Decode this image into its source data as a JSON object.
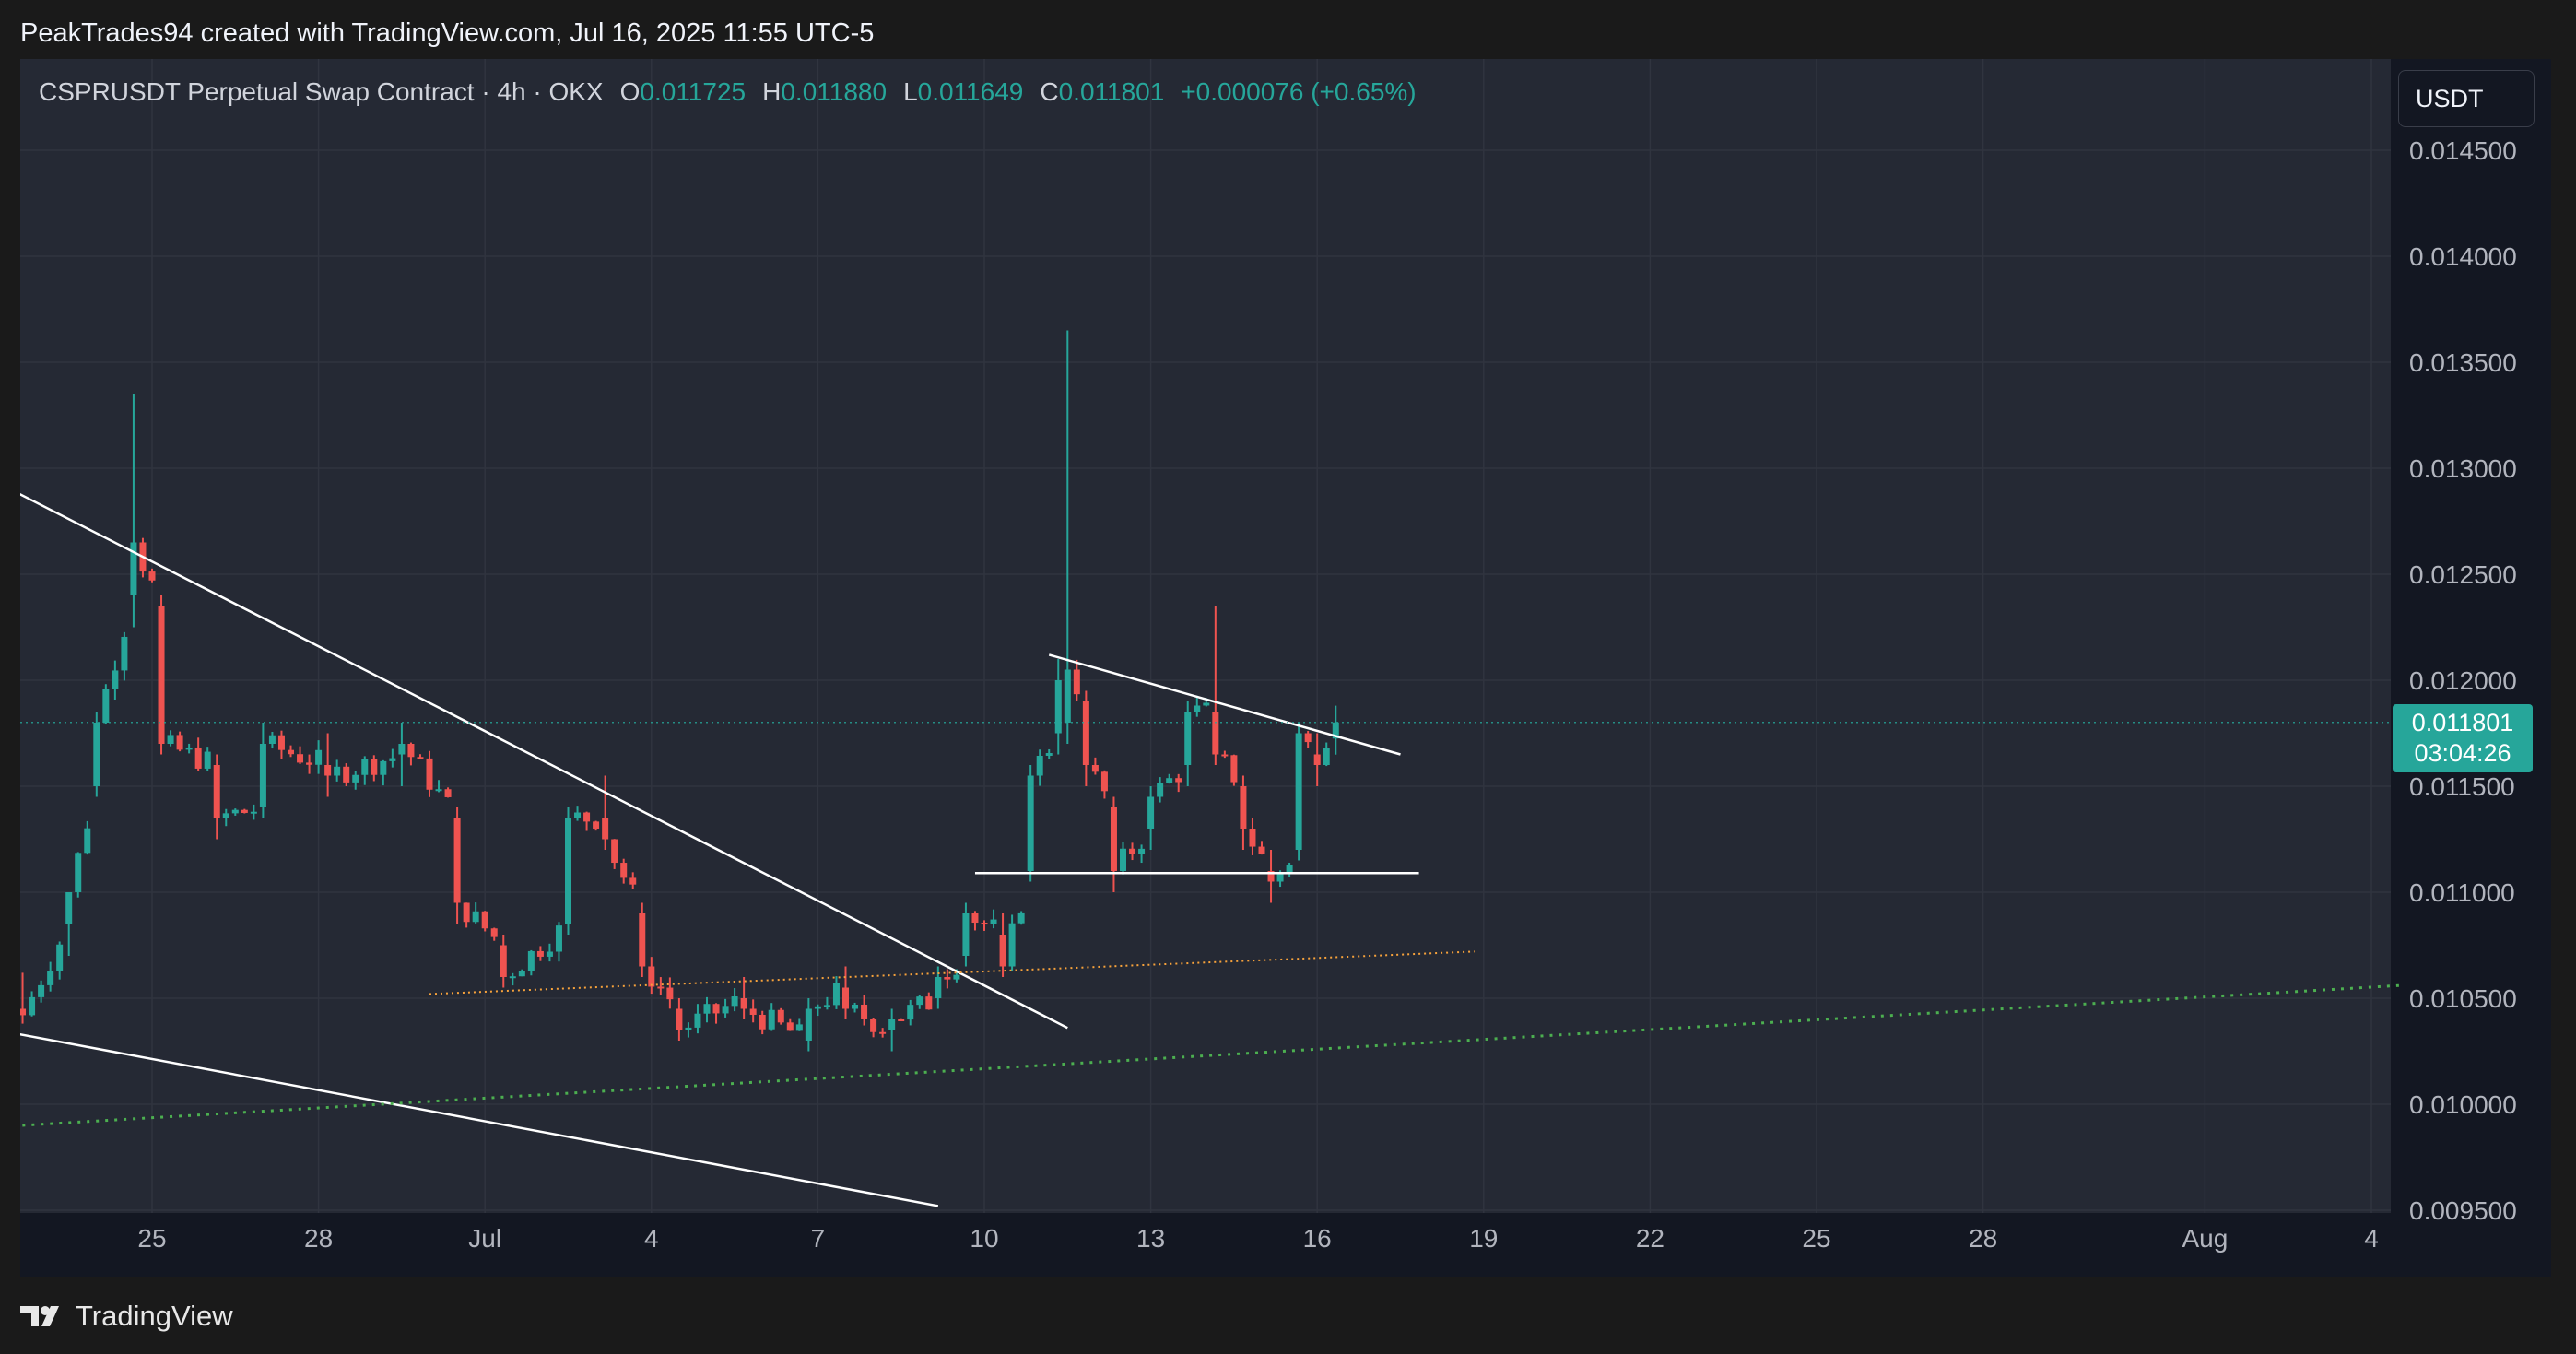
{
  "header": {
    "credit": "PeakTrades94 created with TradingView.com, Jul 16, 2025 11:55 UTC-5"
  },
  "legend": {
    "symbol": "CSPRUSDT Perpetual Swap Contract · 4h · OKX",
    "open_label": "O",
    "open": "0.011725",
    "high_label": "H",
    "high": "0.011880",
    "low_label": "L",
    "low": "0.011649",
    "close_label": "C",
    "close": "0.011801",
    "change": "+0.000076 (+0.65%)"
  },
  "currency_button": "USDT",
  "last_price": {
    "price": "0.011801",
    "countdown": "03:04:26"
  },
  "footer": {
    "brand": "TradingView",
    "logo_icon": "tradingview-logo-icon"
  },
  "colors": {
    "up": "#26a69a",
    "down": "#ef5350",
    "background": "#252934",
    "trendline": "#ffffff",
    "orange_support": "#f7a23b",
    "green_support": "#4caf50"
  },
  "chart_data": {
    "type": "candlestick",
    "interval": "4h",
    "y_ticks": [
      "0.014500",
      "0.014000",
      "0.013500",
      "0.013000",
      "0.012500",
      "0.012000",
      "0.011500",
      "0.011000",
      "0.010500",
      "0.010000",
      "0.009500"
    ],
    "ylim": [
      0.0095,
      0.0146
    ],
    "x_ticks": [
      "25",
      "28",
      "Jul",
      "4",
      "7",
      "10",
      "13",
      "16",
      "19",
      "22",
      "25",
      "28",
      "Aug",
      "4"
    ],
    "x_tick_dates": [
      "2025-06-25",
      "2025-06-28",
      "2025-07-01",
      "2025-07-04",
      "2025-07-07",
      "2025-07-10",
      "2025-07-13",
      "2025-07-16",
      "2025-07-19",
      "2025-07-22",
      "2025-07-25",
      "2025-07-28",
      "2025-08-01",
      "2025-08-04"
    ],
    "grid": true,
    "ohlc_anchor_points": [
      {
        "t": "2025-06-22 16:00",
        "o": 0.01045,
        "h": 0.01062,
        "l": 0.01038,
        "c": 0.01042
      },
      {
        "t": "2025-06-23 12:00",
        "o": 0.01085,
        "h": 0.011,
        "l": 0.0107,
        "c": 0.011
      },
      {
        "t": "2025-06-24 00:00",
        "o": 0.0115,
        "h": 0.01185,
        "l": 0.01145,
        "c": 0.0118
      },
      {
        "t": "2025-06-24 16:00",
        "o": 0.0124,
        "h": 0.01335,
        "l": 0.01225,
        "c": 0.01265
      },
      {
        "t": "2025-06-25 04:00",
        "o": 0.01235,
        "h": 0.0124,
        "l": 0.01165,
        "c": 0.0117
      },
      {
        "t": "2025-06-26 04:00",
        "o": 0.0116,
        "h": 0.01165,
        "l": 0.01125,
        "c": 0.01135
      },
      {
        "t": "2025-06-27 00:00",
        "o": 0.0114,
        "h": 0.0118,
        "l": 0.01135,
        "c": 0.0117
      },
      {
        "t": "2025-06-28 04:00",
        "o": 0.0116,
        "h": 0.01175,
        "l": 0.01145,
        "c": 0.01155
      },
      {
        "t": "2025-06-29 12:00",
        "o": 0.01165,
        "h": 0.0118,
        "l": 0.0115,
        "c": 0.0117
      },
      {
        "t": "2025-06-30 12:00",
        "o": 0.01135,
        "h": 0.0114,
        "l": 0.01085,
        "c": 0.01095
      },
      {
        "t": "2025-07-01 08:00",
        "o": 0.01075,
        "h": 0.0108,
        "l": 0.01055,
        "c": 0.0106
      },
      {
        "t": "2025-07-02 12:00",
        "o": 0.01085,
        "h": 0.0114,
        "l": 0.0108,
        "c": 0.01135
      },
      {
        "t": "2025-07-03 04:00",
        "o": 0.01135,
        "h": 0.01155,
        "l": 0.0112,
        "c": 0.01125
      },
      {
        "t": "2025-07-03 20:00",
        "o": 0.0109,
        "h": 0.01095,
        "l": 0.0106,
        "c": 0.01065
      },
      {
        "t": "2025-07-04 12:00",
        "o": 0.01045,
        "h": 0.0105,
        "l": 0.0103,
        "c": 0.01035
      },
      {
        "t": "2025-07-05 16:00",
        "o": 0.0105,
        "h": 0.0106,
        "l": 0.0104,
        "c": 0.01045
      },
      {
        "t": "2025-07-06 20:00",
        "o": 0.0103,
        "h": 0.0105,
        "l": 0.01025,
        "c": 0.01045
      },
      {
        "t": "2025-07-07 12:00",
        "o": 0.01055,
        "h": 0.01065,
        "l": 0.0104,
        "c": 0.01045
      },
      {
        "t": "2025-07-08 08:00",
        "o": 0.01035,
        "h": 0.01045,
        "l": 0.01025,
        "c": 0.0104
      },
      {
        "t": "2025-07-09 04:00",
        "o": 0.0105,
        "h": 0.01065,
        "l": 0.01045,
        "c": 0.0106
      },
      {
        "t": "2025-07-09 16:00",
        "o": 0.0107,
        "h": 0.01095,
        "l": 0.01065,
        "c": 0.0109
      },
      {
        "t": "2025-07-10 08:00",
        "o": 0.0108,
        "h": 0.0109,
        "l": 0.0106,
        "c": 0.01065
      },
      {
        "t": "2025-07-10 20:00",
        "o": 0.0111,
        "h": 0.0116,
        "l": 0.01105,
        "c": 0.01155
      },
      {
        "t": "2025-07-11 08:00",
        "o": 0.01175,
        "h": 0.0121,
        "l": 0.01165,
        "c": 0.012
      },
      {
        "t": "2025-07-11 12:00",
        "o": 0.0118,
        "h": 0.01365,
        "l": 0.0117,
        "c": 0.01205
      },
      {
        "t": "2025-07-11 20:00",
        "o": 0.0119,
        "h": 0.01195,
        "l": 0.0115,
        "c": 0.0116
      },
      {
        "t": "2025-07-12 08:00",
        "o": 0.0114,
        "h": 0.01145,
        "l": 0.011,
        "c": 0.0111
      },
      {
        "t": "2025-07-13 00:00",
        "o": 0.0113,
        "h": 0.0115,
        "l": 0.0112,
        "c": 0.01145
      },
      {
        "t": "2025-07-13 16:00",
        "o": 0.0116,
        "h": 0.0119,
        "l": 0.0115,
        "c": 0.01185
      },
      {
        "t": "2025-07-14 04:00",
        "o": 0.01185,
        "h": 0.01235,
        "l": 0.0116,
        "c": 0.01165
      },
      {
        "t": "2025-07-14 16:00",
        "o": 0.0115,
        "h": 0.01155,
        "l": 0.0112,
        "c": 0.0113
      },
      {
        "t": "2025-07-15 04:00",
        "o": 0.0111,
        "h": 0.0112,
        "l": 0.01095,
        "c": 0.01105
      },
      {
        "t": "2025-07-15 16:00",
        "o": 0.0112,
        "h": 0.0118,
        "l": 0.01115,
        "c": 0.01175
      },
      {
        "t": "2025-07-16 00:00",
        "o": 0.01165,
        "h": 0.01175,
        "l": 0.0115,
        "c": 0.0116
      },
      {
        "t": "2025-07-16 08:00",
        "o": 0.011725,
        "h": 0.01188,
        "l": 0.011649,
        "c": 0.011801
      }
    ],
    "drawings": [
      {
        "name": "falling-wedge-upper",
        "style": "solid",
        "color": "#ffffff",
        "points": [
          {
            "t": "2025-06-22 00:00",
            "p": 0.01296
          },
          {
            "t": "2025-07-11 12:00",
            "p": 0.01036
          }
        ]
      },
      {
        "name": "falling-wedge-lower",
        "style": "solid",
        "color": "#ffffff",
        "points": [
          {
            "t": "2025-06-22 00:00",
            "p": 0.01036
          },
          {
            "t": "2025-07-09 04:00",
            "p": 0.00952
          }
        ]
      },
      {
        "name": "descending-triangle-upper",
        "style": "solid",
        "color": "#ffffff",
        "points": [
          {
            "t": "2025-07-11 04:00",
            "p": 0.01212
          },
          {
            "t": "2025-07-17 12:00",
            "p": 0.01165
          }
        ]
      },
      {
        "name": "descending-triangle-base",
        "style": "solid",
        "color": "#ffffff",
        "points": [
          {
            "t": "2025-07-09 20:00",
            "p": 0.01109
          },
          {
            "t": "2025-07-17 20:00",
            "p": 0.01109
          }
        ]
      },
      {
        "name": "orange-support",
        "style": "dotted",
        "color": "#f7a23b",
        "points": [
          {
            "t": "2025-06-30 00:00",
            "p": 0.01052
          },
          {
            "t": "2025-07-18 20:00",
            "p": 0.01072
          }
        ]
      },
      {
        "name": "green-support",
        "style": "dotted",
        "color": "#4caf50",
        "points": [
          {
            "t": "2025-06-22 00:00",
            "p": 0.00989
          },
          {
            "t": "2025-08-04 12:00",
            "p": 0.01056
          }
        ]
      }
    ],
    "last_price_line": 0.011801
  }
}
